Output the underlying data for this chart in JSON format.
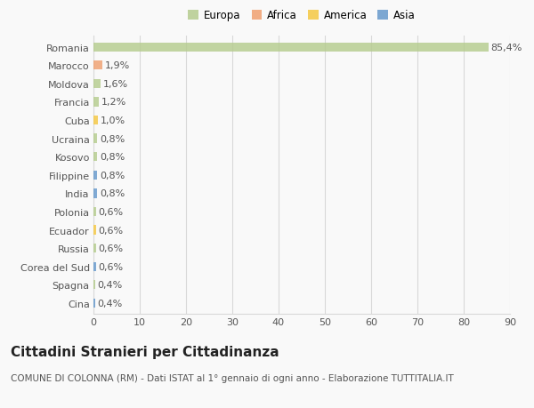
{
  "categories": [
    "Romania",
    "Marocco",
    "Moldova",
    "Francia",
    "Cuba",
    "Ucraina",
    "Kosovo",
    "Filippine",
    "India",
    "Polonia",
    "Ecuador",
    "Russia",
    "Corea del Sud",
    "Spagna",
    "Cina"
  ],
  "values": [
    85.4,
    1.9,
    1.6,
    1.2,
    1.0,
    0.8,
    0.8,
    0.8,
    0.8,
    0.6,
    0.6,
    0.6,
    0.6,
    0.4,
    0.4
  ],
  "labels": [
    "85,4%",
    "1,9%",
    "1,6%",
    "1,2%",
    "1,0%",
    "0,8%",
    "0,8%",
    "0,8%",
    "0,8%",
    "0,6%",
    "0,6%",
    "0,6%",
    "0,6%",
    "0,4%",
    "0,4%"
  ],
  "colors": [
    "#b5cc8e",
    "#f0a070",
    "#b5cc8e",
    "#b5cc8e",
    "#f5c842",
    "#b5cc8e",
    "#b5cc8e",
    "#6699cc",
    "#6699cc",
    "#b5cc8e",
    "#f5c842",
    "#b5cc8e",
    "#6699cc",
    "#b5cc8e",
    "#6699cc"
  ],
  "legend_labels": [
    "Europa",
    "Africa",
    "America",
    "Asia"
  ],
  "legend_colors": [
    "#b5cc8e",
    "#f0a070",
    "#f5c842",
    "#6699cc"
  ],
  "title": "Cittadini Stranieri per Cittadinanza",
  "subtitle": "COMUNE DI COLONNA (RM) - Dati ISTAT al 1° gennaio di ogni anno - Elaborazione TUTTITALIA.IT",
  "xlim": [
    0,
    90
  ],
  "xticks": [
    0,
    10,
    20,
    30,
    40,
    50,
    60,
    70,
    80,
    90
  ],
  "background_color": "#f9f9f9",
  "grid_color": "#d8d8d8",
  "bar_height": 0.5,
  "label_fontsize": 8,
  "tick_fontsize": 8,
  "title_fontsize": 11,
  "subtitle_fontsize": 7.5
}
